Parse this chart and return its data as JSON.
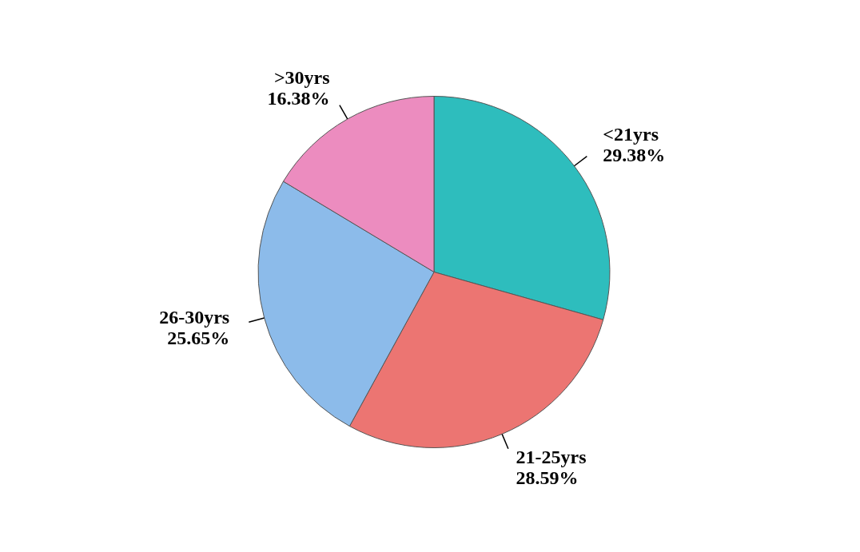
{
  "chart_data": {
    "type": "pie",
    "categories": [
      "<21yrs",
      "21-25yrs",
      "26-30yrs",
      ">30yrs"
    ],
    "values": [
      29.38,
      28.59,
      25.65,
      16.38
    ],
    "value_labels": [
      "29.38%",
      "28.59%",
      "25.65%",
      "16.38%"
    ],
    "colors": [
      "#2ebdbd",
      "#ec7572",
      "#8cbbea",
      "#ec8cbf"
    ],
    "legend": false
  }
}
